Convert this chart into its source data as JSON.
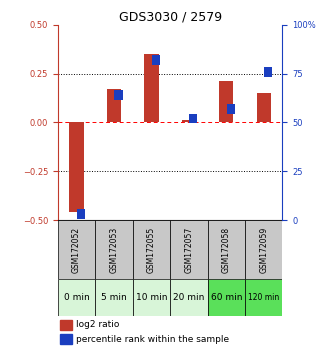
{
  "title": "GDS3030 / 2579",
  "samples": [
    "GSM172052",
    "GSM172053",
    "GSM172055",
    "GSM172057",
    "GSM172058",
    "GSM172059"
  ],
  "time_labels": [
    "0 min",
    "5 min",
    "10 min",
    "20 min",
    "60 min",
    "120 min"
  ],
  "log2_ratio": [
    -0.46,
    0.17,
    0.35,
    0.01,
    0.21,
    0.15
  ],
  "percentile_rank": [
    3,
    64,
    82,
    52,
    57,
    76
  ],
  "bar_color_red": "#C0392B",
  "bar_color_blue": "#1A3EBF",
  "ylim_left": [
    -0.5,
    0.5
  ],
  "ylim_right": [
    0,
    100
  ],
  "yticks_left": [
    -0.5,
    -0.25,
    0,
    0.25,
    0.5
  ],
  "yticks_right": [
    0,
    25,
    50,
    75,
    100
  ],
  "bg_color": "#FFFFFF",
  "label_bg_gray": "#C8C8C8",
  "time_row_colors": [
    "#d8f5d8",
    "#d8f5d8",
    "#d8f5d8",
    "#d8f5d8",
    "#5AE05A",
    "#5AE05A"
  ],
  "title_fontsize": 9,
  "tick_fontsize": 6,
  "legend_fontsize": 6.5,
  "sample_fontsize": 5.5,
  "time_fontsize": 6.5
}
